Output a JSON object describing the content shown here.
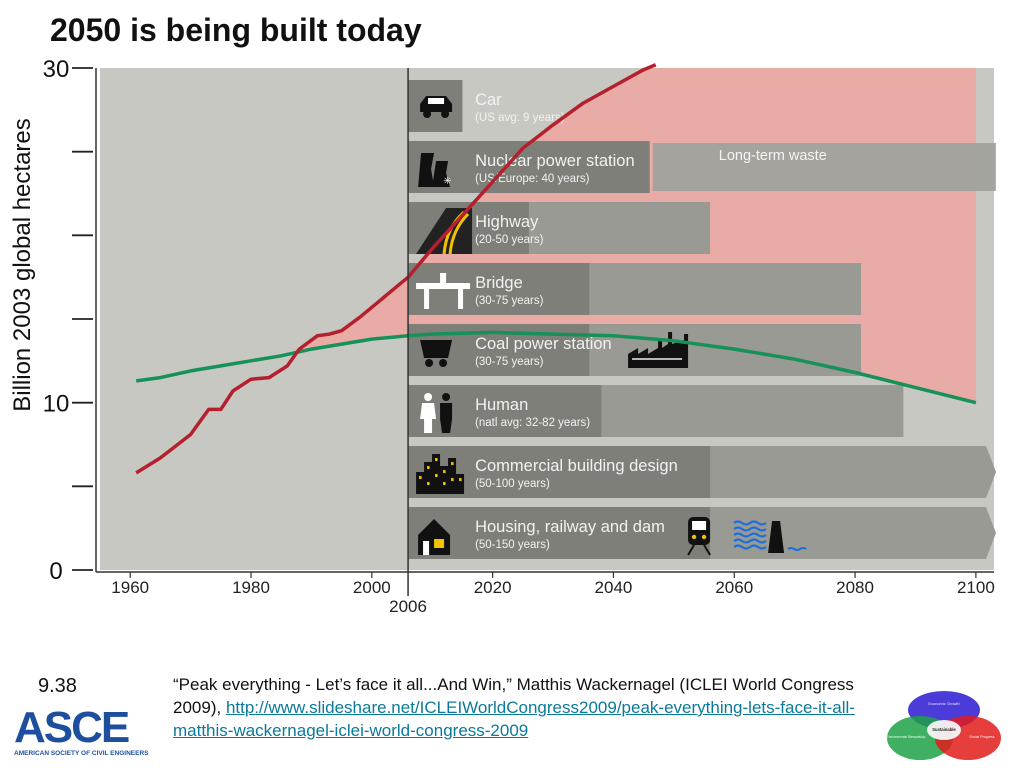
{
  "title": "2050 is being built today",
  "slide_number": "9.38",
  "citation": {
    "text": "“Peak everything - Let’s face it all...And Win,” Matthis Wackernagel (ICLEI World Congress 2009), ",
    "link": "http://www.slideshare.net/ICLEIWorldCongress2009/peak-everything-lets-face-it-all-matthis-wackernagel-iclei-world-congress-2009"
  },
  "logo": {
    "mark": "ASCE",
    "subtitle": "AMERICAN SOCIETY OF CIVIL ENGINEERS"
  },
  "venn": {
    "labels": [
      "Economic Growth",
      "Sustainable",
      "Environmental Stewardship",
      "Social Progress"
    ]
  },
  "colors": {
    "plot_background": "#c6c8c1",
    "overshoot_fill": "#e8aba5",
    "demand_line": "#b5202e",
    "capacity_line": "#17915a",
    "bar_dark": "#7e7f78",
    "bar_light": "#999a93",
    "waste_bar": "#a1a29c"
  },
  "chart_data": {
    "type": "line",
    "ylabel": "Billion 2003 global hectares",
    "ylim": [
      0,
      30
    ],
    "xlim": [
      1955,
      2103
    ],
    "x_ticks": [
      1960,
      1980,
      2000,
      2020,
      2040,
      2060,
      2080,
      2100
    ],
    "y_tick_labels": [
      {
        "value": 0,
        "label": "0"
      },
      {
        "value": 10,
        "label": "10"
      },
      {
        "value": 30,
        "label": "30"
      }
    ],
    "y_tick_marks": [
      0,
      5,
      10,
      15,
      20,
      25,
      30
    ],
    "present_year": {
      "x": 2006,
      "label": "2006"
    },
    "series": [
      {
        "key": "footprint",
        "points": [
          [
            1961,
            5.8
          ],
          [
            1965,
            6.7
          ],
          [
            1970,
            8.1
          ],
          [
            1973,
            9.6
          ],
          [
            1975,
            9.6
          ],
          [
            1977,
            10.7
          ],
          [
            1980,
            11.4
          ],
          [
            1983,
            11.5
          ],
          [
            1986,
            12.2
          ],
          [
            1988,
            13.2
          ],
          [
            1991,
            14.0
          ],
          [
            1993,
            14.1
          ],
          [
            1995,
            14.3
          ],
          [
            1998,
            15.1
          ],
          [
            2001,
            16.0
          ],
          [
            2004,
            16.9
          ],
          [
            2006,
            17.5
          ],
          [
            2010,
            19.2
          ],
          [
            2015,
            21.2
          ],
          [
            2020,
            23.2
          ],
          [
            2025,
            25.2
          ],
          [
            2030,
            26.6
          ],
          [
            2035,
            27.9
          ],
          [
            2040,
            28.9
          ],
          [
            2045,
            29.9
          ],
          [
            2047,
            30.5
          ]
        ]
      },
      {
        "key": "biocapacity",
        "points": [
          [
            1961,
            11.3
          ],
          [
            1965,
            11.5
          ],
          [
            1970,
            11.9
          ],
          [
            1975,
            12.2
          ],
          [
            1980,
            12.5
          ],
          [
            1985,
            12.8
          ],
          [
            1990,
            13.2
          ],
          [
            1995,
            13.5
          ],
          [
            2000,
            13.8
          ],
          [
            2006,
            14.0
          ],
          [
            2010,
            14.1
          ],
          [
            2020,
            14.2
          ],
          [
            2030,
            14.1
          ],
          [
            2040,
            14.0
          ],
          [
            2050,
            13.7
          ],
          [
            2060,
            13.2
          ],
          [
            2070,
            12.6
          ],
          [
            2080,
            11.8
          ],
          [
            2090,
            10.9
          ],
          [
            2100,
            10.0
          ]
        ]
      }
    ],
    "lifespans": [
      {
        "key": "car",
        "label": "Car",
        "sub": "(US avg: 9 years)",
        "min_years": 9,
        "max_years": 9,
        "icon": "car-icon"
      },
      {
        "key": "nuclear",
        "label": "Nuclear power station",
        "sub": "(US/Europe: 40 years)",
        "min_years": 40,
        "max_years": 40,
        "icon": "nuclear-plant-icon",
        "extension_label": "Long-term waste",
        "extension_until": 2100
      },
      {
        "key": "highway",
        "label": "Highway",
        "sub": "(20-50 years)",
        "min_years": 20,
        "max_years": 50,
        "icon": "highway-icon"
      },
      {
        "key": "bridge",
        "label": "Bridge",
        "sub": "(30-75 years)",
        "min_years": 30,
        "max_years": 75,
        "icon": "bridge-icon"
      },
      {
        "key": "coal",
        "label": "Coal power station",
        "sub": "(30-75 years)",
        "min_years": 30,
        "max_years": 75,
        "icon": "coal-cart-icon"
      },
      {
        "key": "human",
        "label": "Human",
        "sub": "(natl avg: 32-82 years)",
        "min_years": 32,
        "max_years": 82,
        "icon": "people-icon"
      },
      {
        "key": "commercial",
        "label": "Commercial building design",
        "sub": "(50-100 years)",
        "min_years": 50,
        "max_years": 100,
        "icon": "city-icon",
        "open_ended": true
      },
      {
        "key": "housing",
        "label": "Housing, railway and dam",
        "sub": "(50-150 years)",
        "min_years": 50,
        "max_years": 150,
        "icon": "house-icon",
        "open_ended": true
      }
    ]
  }
}
